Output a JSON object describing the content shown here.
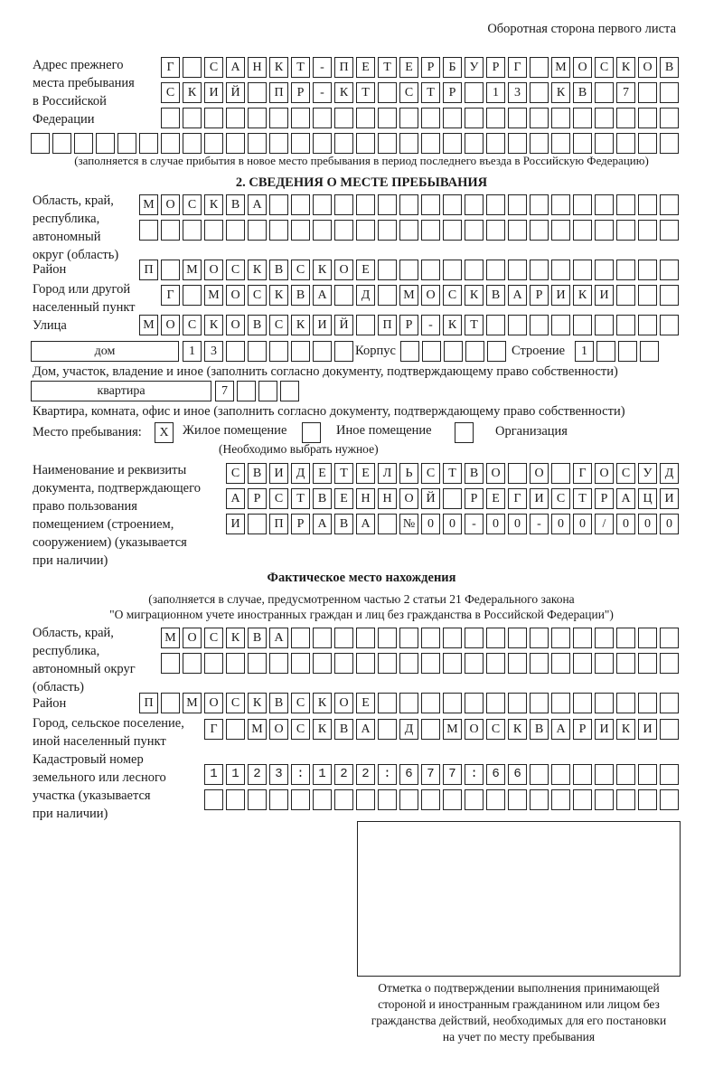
{
  "page_header": "Оборотная сторона первого листа",
  "prev_address": {
    "label": "Адрес прежнего места пребывания в Российской Федерации",
    "label_lines": [
      "Адрес прежнего",
      "места пребывания",
      "в Российской",
      "Федерации"
    ],
    "rows": [
      "Г САНКТ-ПЕТЕРБУРГ МОСКОВ",
      "СКИЙ ПР-КТ СТР 13 КВ 7",
      "",
      ""
    ],
    "note": "(заполняется в случае прибытия в новое место пребывания в период последнего въезда в Российскую Федерацию)"
  },
  "section2": {
    "title": "2. СВЕДЕНИЯ О МЕСТЕ ПРЕБЫВАНИЯ",
    "region_label_lines": [
      "Область, край,",
      "республика,",
      "автономный",
      "округ (область)"
    ],
    "region_rows": [
      "МОСКВА",
      ""
    ],
    "district_label": "Район",
    "district": "П МОСКВСКОЕ",
    "city_label_lines": [
      "Город или другой",
      "населенный пункт"
    ],
    "city": "Г МОСКВА Д МОСКВАРИКИ",
    "street_label": "Улица",
    "street": "МОСКОВСКИЙ ПР-КТ",
    "house_type": "дом",
    "house": "13",
    "korpus_label": "Корпус",
    "korpus": "",
    "building_label": "Строение",
    "building": "1",
    "house_note": "Дом, участок, владение и иное (заполнить согласно документу, подтверждающему право собственности)",
    "apt_type": "квартира",
    "apt": "7",
    "apt_note": "Квартира, комната, офис и иное (заполнить согласно документу, подтверждающему право собственности)",
    "place_label": "Место пребывания:",
    "options": [
      {
        "mark": "X",
        "label": "Жилое помещение",
        "checked": true
      },
      {
        "mark": "",
        "label": "Иное помещение",
        "checked": false
      },
      {
        "mark": "",
        "label": "Организация",
        "checked": false
      }
    ],
    "choose_note": "(Необходимо выбрать нужное)",
    "doc_label_lines": [
      "Наименование и реквизиты",
      "документа, подтверждающего",
      "право пользования",
      "помещением (строением,",
      "сооружением) (указывается",
      "при наличии)"
    ],
    "doc_rows": [
      "СВИДЕТЕЛЬСТВО О ГОСУД",
      "АРСТВЕННОЙ РЕГИСТРАЦИ",
      "И ПРАВА №00-00-00/000"
    ]
  },
  "actual": {
    "title": "Фактическое место нахождения",
    "note_lines": [
      "(заполняется в случае, предусмотренном частью 2 статьи 21 Федерального закона",
      "\"О миграционном учете иностранных граждан и лиц без гражданства в Российской Федерации\")"
    ],
    "region_label_lines": [
      "Область, край,",
      "республика,",
      "автономный округ",
      "(область)"
    ],
    "region_rows": [
      "МОСКВА",
      ""
    ],
    "district_label": "Район",
    "district": "П МОСКВСКОЕ",
    "city_label_lines": [
      "Город, сельское поселение,",
      "иной населенный пункт"
    ],
    "city": "Г МОСКВА Д МОСКВАРИКИ",
    "cadastral_label_lines": [
      "Кадастровый номер",
      "земельного или лесного",
      "участка (указывается",
      "при наличии)"
    ],
    "cadastral_rows": [
      "1123:122:677:66",
      ""
    ]
  },
  "confirmation": {
    "caption_lines": [
      "Отметка о подтверждении выполнения принимающей",
      "стороной и иностранным гражданином или лицом без",
      "гражданства действий, необходимых для его постановки",
      "на учет по месту пребывания"
    ]
  }
}
